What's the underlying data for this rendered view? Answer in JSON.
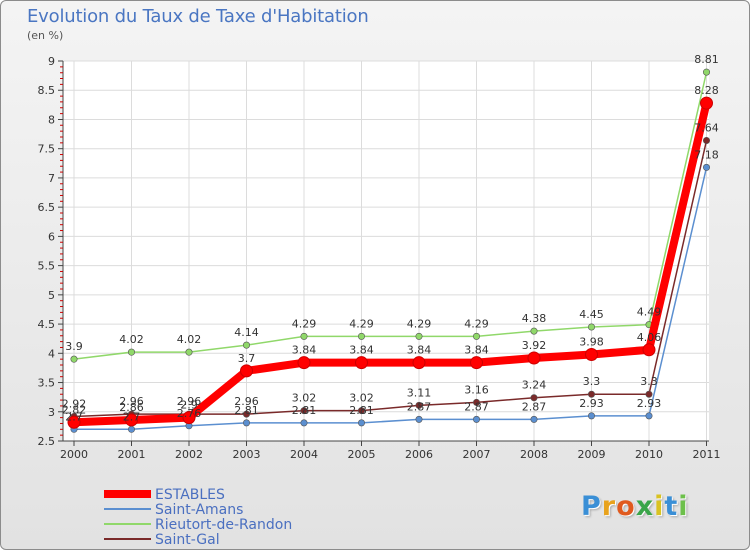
{
  "chart_data": {
    "type": "line",
    "title": "Evolution du Taux de Taxe d'Habitation",
    "subtitle": "(en %)",
    "x": [
      "2000",
      "2001",
      "2002",
      "2003",
      "2004",
      "2005",
      "2006",
      "2007",
      "2008",
      "2009",
      "2010",
      "2011"
    ],
    "ylim": [
      2.5,
      9
    ],
    "yticks": [
      "2.5",
      "3",
      "3.5",
      "4",
      "4.5",
      "5",
      "5.5",
      "6",
      "6.5",
      "7",
      "7.5",
      "8",
      "8.5",
      "9"
    ],
    "grid": true,
    "legend_position": "bottom-left",
    "series": [
      {
        "name": "ESTABLES",
        "color": "#ff0000",
        "values": [
          2.82,
          2.86,
          2.9,
          3.7,
          3.84,
          3.84,
          3.84,
          3.84,
          3.92,
          3.98,
          4.06,
          8.28
        ],
        "labels": [
          "2.82",
          "2.86",
          "2.9",
          "3.7",
          "3.84",
          "3.84",
          "3.84",
          "3.84",
          "3.92",
          "3.98",
          "4.06",
          "8.28"
        ]
      },
      {
        "name": "Saint-Amans",
        "color": "#5b8fd0",
        "values": [
          2.7,
          2.7,
          2.76,
          2.81,
          2.81,
          2.81,
          2.87,
          2.87,
          2.87,
          2.93,
          2.93,
          7.18
        ],
        "labels": [
          "2.7",
          "2.7",
          "2.76",
          "2.81",
          "2.81",
          "2.81",
          "2.87",
          "2.87",
          "2.87",
          "2.93",
          "2.93",
          "7.18"
        ]
      },
      {
        "name": "Rieutort-de-Randon",
        "color": "#90d86a",
        "values": [
          3.9,
          4.02,
          4.02,
          4.14,
          4.29,
          4.29,
          4.29,
          4.29,
          4.38,
          4.45,
          4.49,
          8.81
        ],
        "labels": [
          "3.9",
          "4.02",
          "4.02",
          "4.14",
          "4.29",
          "4.29",
          "4.29",
          "4.29",
          "4.38",
          "4.45",
          "4.49",
          "8.81"
        ]
      },
      {
        "name": "Saint-Gal",
        "color": "#7a2a2a",
        "values": [
          2.92,
          2.96,
          2.96,
          2.96,
          3.02,
          3.02,
          3.11,
          3.16,
          3.24,
          3.3,
          3.3,
          7.64
        ],
        "labels": [
          "2.92",
          "2.96",
          "2.96",
          "2.96",
          "3.02",
          "3.02",
          "3.11",
          "3.16",
          "3.24",
          "3.3",
          "3.3",
          "7.64"
        ]
      }
    ]
  },
  "brand": {
    "letters": [
      "P",
      "r",
      "o",
      "x",
      "i",
      "t",
      "i"
    ],
    "colors": [
      "#3a8fd6",
      "#e8a21c",
      "#e05a1e",
      "#3aa54a",
      "#d9c221",
      "#3a8fd6",
      "#6cc04a"
    ]
  }
}
